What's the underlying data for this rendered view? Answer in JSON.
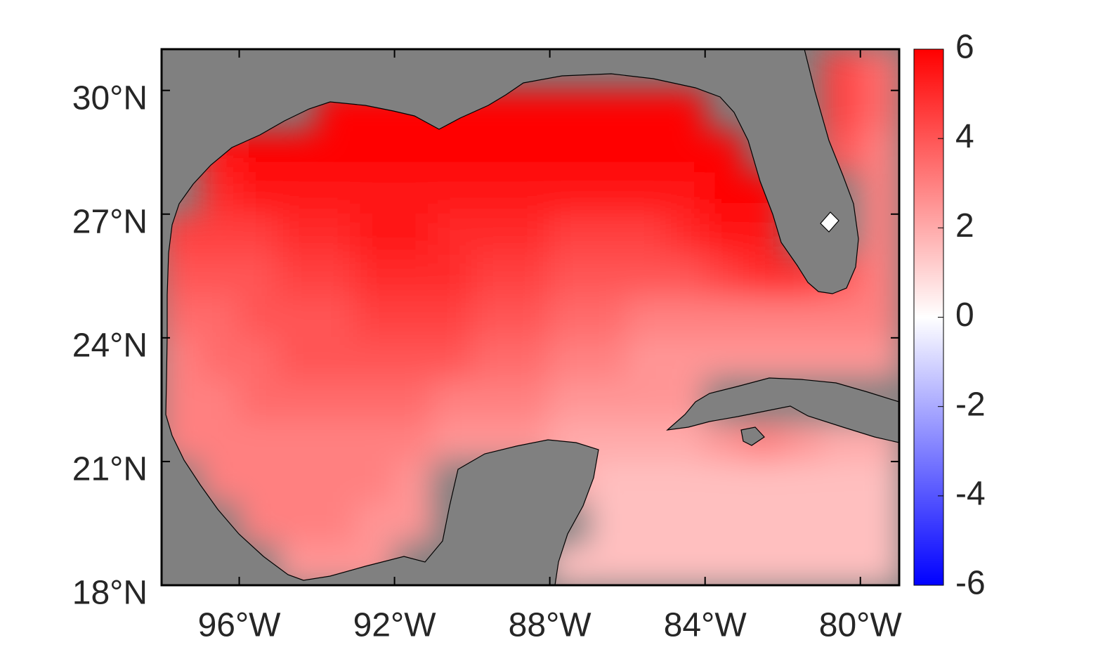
{
  "map": {
    "xlim": [
      -98,
      -79
    ],
    "ylim": [
      18,
      31
    ],
    "xticks": [
      {
        "value": -96,
        "label": "96°W"
      },
      {
        "value": -92,
        "label": "92°W"
      },
      {
        "value": -88,
        "label": "88°W"
      },
      {
        "value": -84,
        "label": "84°W"
      },
      {
        "value": -80,
        "label": "80°W"
      }
    ],
    "yticks": [
      {
        "value": 18,
        "label": "18°N"
      },
      {
        "value": 21,
        "label": "21°N"
      },
      {
        "value": 24,
        "label": "24°N"
      },
      {
        "value": 27,
        "label": "27°N"
      },
      {
        "value": 30,
        "label": "30°N"
      }
    ],
    "land_color": "#808080",
    "colormap": [
      "#0000ff",
      "#ffffff",
      "#ff0000"
    ],
    "clim": [
      -6,
      6
    ],
    "cticks": [
      -6,
      -4,
      -2,
      0,
      2,
      4,
      6
    ],
    "lon": [
      -97.5,
      -96.5,
      -95.5,
      -94.5,
      -93.5,
      -92.5,
      -91.5,
      -90.5,
      -89.5,
      -88.5,
      -87.5,
      -86.5,
      -85.5,
      -84.5,
      -83.5,
      -82.5,
      -81.5,
      -80.5,
      -79.5
    ],
    "lat": [
      30.5,
      29.5,
      28.5,
      27.5,
      26.5,
      25.5,
      24.5,
      23.5,
      22.5,
      21.5,
      20.5,
      19.5,
      18.5
    ],
    "values": [
      [
        null,
        null,
        null,
        null,
        null,
        null,
        null,
        null,
        null,
        null,
        null,
        null,
        null,
        null,
        null,
        null,
        null,
        4.5,
        3.5
      ],
      [
        null,
        null,
        null,
        null,
        6,
        6,
        6,
        6,
        6,
        6,
        6,
        6,
        6,
        6,
        null,
        null,
        null,
        4.5,
        3.5
      ],
      [
        null,
        5.5,
        6,
        6,
        6,
        6,
        6,
        6,
        6,
        6,
        6,
        6,
        6,
        6,
        6,
        null,
        null,
        4,
        3
      ],
      [
        null,
        5,
        5.5,
        5.5,
        5.5,
        5.5,
        5.5,
        5.5,
        5.5,
        5.5,
        5.5,
        5.5,
        5.5,
        5.5,
        6,
        6,
        null,
        null,
        3
      ],
      [
        4.5,
        4.5,
        4.5,
        5,
        5,
        5.5,
        5.5,
        5,
        5,
        5,
        4.5,
        4.5,
        4.5,
        5,
        5.5,
        5.5,
        null,
        null,
        3
      ],
      [
        4,
        4,
        4,
        4.5,
        4.5,
        5,
        5,
        5,
        4.5,
        4.5,
        4,
        4,
        4,
        4,
        4.5,
        5,
        5,
        4,
        3
      ],
      [
        3.5,
        3.5,
        4,
        4,
        4,
        4.5,
        4.5,
        4.5,
        4,
        4,
        3.5,
        3.5,
        3,
        3,
        3,
        3,
        3,
        3,
        3
      ],
      [
        3,
        3.5,
        3.5,
        4,
        4,
        4,
        4,
        4,
        3.5,
        3.5,
        3,
        3,
        2.5,
        2.5,
        2.5,
        2.5,
        2.5,
        2.5,
        2.5
      ],
      [
        3,
        3,
        3.5,
        3.5,
        3.5,
        3.5,
        3.5,
        3,
        3,
        3,
        2.5,
        2.5,
        2.5,
        2.5,
        null,
        null,
        null,
        null,
        null
      ],
      [
        3,
        3,
        3,
        3,
        3,
        3,
        3,
        2.5,
        2.5,
        2.5,
        2,
        2,
        2,
        2,
        2.5,
        3,
        2.5,
        2,
        2
      ],
      [
        null,
        3,
        3,
        3,
        3,
        3,
        2.5,
        null,
        null,
        null,
        2,
        1.5,
        1.5,
        1.5,
        1.5,
        1.5,
        1.5,
        1.5,
        1.5
      ],
      [
        null,
        null,
        3,
        3,
        3,
        2.5,
        2.5,
        null,
        null,
        null,
        null,
        1.5,
        1.5,
        1.5,
        1.5,
        1.5,
        1.5,
        1.5,
        1.5
      ],
      [
        null,
        null,
        null,
        2.5,
        2.5,
        2.5,
        null,
        null,
        null,
        null,
        1.5,
        1.5,
        1.5,
        1.5,
        1.5,
        1.5,
        1.5,
        1.5,
        1.5
      ]
    ]
  }
}
